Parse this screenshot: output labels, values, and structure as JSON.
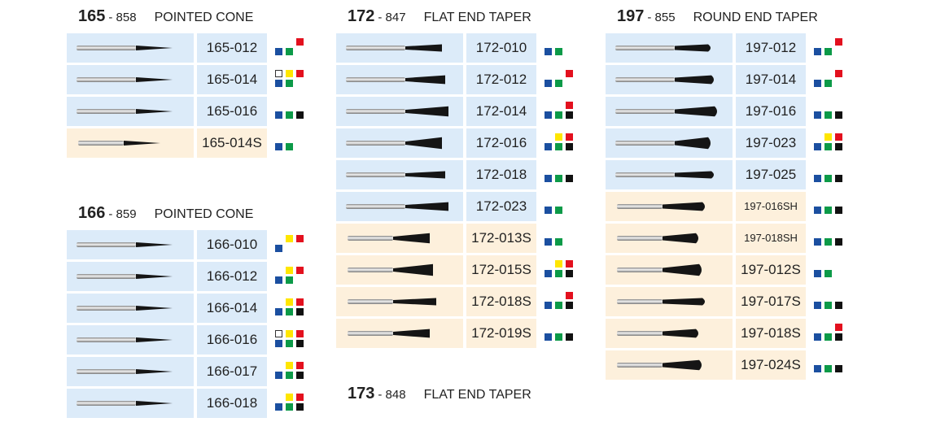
{
  "groups": [
    {
      "number": "165",
      "code": "- 858",
      "title": "POINTED CONE",
      "items": [
        {
          "code": "165-012",
          "background": "#dcebf9",
          "grits": [
            "red",
            "blue",
            "green"
          ]
        },
        {
          "code": "165-014",
          "background": "#dcebf9",
          "grits": [
            "white",
            "yellow",
            "red",
            "blue",
            "green"
          ]
        },
        {
          "code": "165-016",
          "background": "#dcebf9",
          "grits": [
            "blue",
            "green",
            "black"
          ]
        },
        {
          "code": "165-014S",
          "background": "#fdf0dc",
          "grits": [
            "blue",
            "green"
          ]
        }
      ]
    },
    {
      "number": "166",
      "code": "- 859",
      "title": "POINTED CONE",
      "items": [
        {
          "code": "166-010",
          "background": "#dcebf9",
          "grits": [
            "yellow",
            "red",
            "blue"
          ]
        },
        {
          "code": "166-012",
          "background": "#dcebf9",
          "grits": [
            "yellow",
            "red",
            "blue",
            "green"
          ]
        },
        {
          "code": "166-014",
          "background": "#dcebf9",
          "grits": [
            "yellow",
            "red",
            "blue",
            "green",
            "black"
          ]
        },
        {
          "code": "166-016",
          "background": "#dcebf9",
          "grits": [
            "white",
            "yellow",
            "red",
            "blue",
            "green",
            "black"
          ]
        },
        {
          "code": "166-017",
          "background": "#dcebf9",
          "grits": [
            "yellow",
            "red",
            "blue",
            "green",
            "black"
          ]
        },
        {
          "code": "166-018",
          "background": "#dcebf9",
          "grits": [
            "yellow",
            "red",
            "blue",
            "green",
            "black"
          ]
        }
      ]
    },
    {
      "number": "172",
      "code": "- 847",
      "title": "FLAT END TAPER",
      "items": [
        {
          "code": "172-010",
          "background": "#dcebf9",
          "grits": [
            "blue",
            "green"
          ]
        },
        {
          "code": "172-012",
          "background": "#dcebf9",
          "grits": [
            "red",
            "blue",
            "green"
          ]
        },
        {
          "code": "172-014",
          "background": "#dcebf9",
          "grits": [
            "red",
            "blue",
            "green",
            "black"
          ]
        },
        {
          "code": "172-016",
          "background": "#dcebf9",
          "grits": [
            "yellow",
            "red",
            "blue",
            "green",
            "black"
          ]
        },
        {
          "code": "172-018",
          "background": "#dcebf9",
          "grits": [
            "blue",
            "green",
            "black"
          ]
        },
        {
          "code": "172-023",
          "background": "#dcebf9",
          "grits": [
            "blue",
            "green"
          ]
        },
        {
          "code": "172-013S",
          "background": "#fdf0dc",
          "grits": [
            "blue",
            "green"
          ]
        },
        {
          "code": "172-015S",
          "background": "#fdf0dc",
          "grits": [
            "yellow",
            "red",
            "blue",
            "green",
            "black"
          ]
        },
        {
          "code": "172-018S",
          "background": "#fdf0dc",
          "grits": [
            "red",
            "blue",
            "green",
            "black"
          ]
        },
        {
          "code": "172-019S",
          "background": "#fdf0dc",
          "grits": [
            "blue",
            "green",
            "black"
          ]
        }
      ]
    },
    {
      "number": "173",
      "code": "- 848",
      "title": "FLAT END TAPER",
      "items": []
    },
    {
      "number": "197",
      "code": "- 855",
      "title": "ROUND END TAPER",
      "items": [
        {
          "code": "197-012",
          "background": "#dcebf9",
          "grits": [
            "red",
            "blue",
            "green"
          ]
        },
        {
          "code": "197-014",
          "background": "#dcebf9",
          "grits": [
            "red",
            "blue",
            "green"
          ]
        },
        {
          "code": "197-016",
          "background": "#dcebf9",
          "grits": [
            "blue",
            "green",
            "black"
          ]
        },
        {
          "code": "197-023",
          "background": "#dcebf9",
          "grits": [
            "yellow",
            "red",
            "blue",
            "green",
            "black"
          ]
        },
        {
          "code": "197-025",
          "background": "#dcebf9",
          "grits": [
            "blue",
            "green",
            "black"
          ]
        },
        {
          "code": "197-016SH",
          "background": "#fdf0dc",
          "grits": [
            "blue",
            "green",
            "black"
          ]
        },
        {
          "code": "197-018SH",
          "background": "#fdf0dc",
          "grits": [
            "blue",
            "green",
            "black"
          ]
        },
        {
          "code": "197-012S",
          "background": "#fdf0dc",
          "grits": [
            "blue",
            "green"
          ]
        },
        {
          "code": "197-017S",
          "background": "#fdf0dc",
          "grits": [
            "blue",
            "green",
            "black"
          ]
        },
        {
          "code": "197-018S",
          "background": "#fdf0dc",
          "grits": [
            "red",
            "blue",
            "green",
            "black"
          ]
        },
        {
          "code": "197-024S",
          "background": "#fdf0dc",
          "grits": [
            "blue",
            "green",
            "black"
          ]
        }
      ]
    }
  ]
}
